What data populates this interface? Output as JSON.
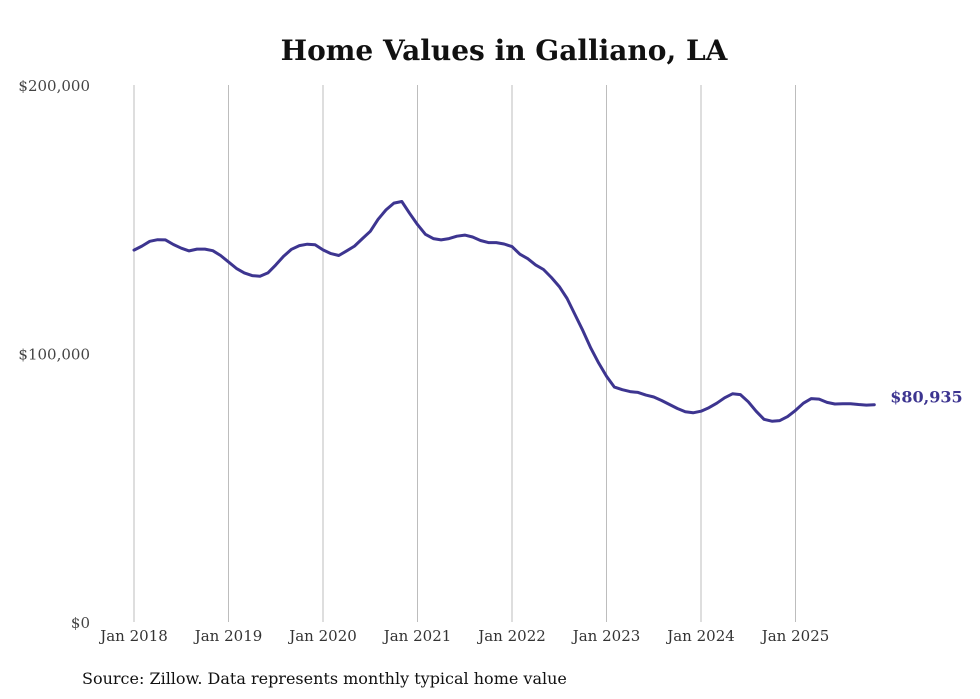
{
  "chart_data": {
    "type": "line",
    "title": "Home Values in Galliano, LA",
    "source": "Source: Zillow. Data represents monthly typical home value",
    "xlabel": "",
    "ylabel": "",
    "ylim": [
      0,
      200000
    ],
    "yticks": [
      {
        "value": 0,
        "label": "$0"
      },
      {
        "value": 100000,
        "label": "$100,000"
      },
      {
        "value": 200000,
        "label": "$200,000"
      }
    ],
    "xticks": [
      {
        "month_index": 0,
        "label": "Jan 2018"
      },
      {
        "month_index": 12,
        "label": "Jan 2019"
      },
      {
        "month_index": 24,
        "label": "Jan 2020"
      },
      {
        "month_index": 36,
        "label": "Jan 2021"
      },
      {
        "month_index": 48,
        "label": "Jan 2022"
      },
      {
        "month_index": 60,
        "label": "Jan 2023"
      },
      {
        "month_index": 72,
        "label": "Jan 2024"
      },
      {
        "month_index": 84,
        "label": "Jan 2025"
      }
    ],
    "x_start": "Jan 2018",
    "x_step": "1 month",
    "grid": "vertical",
    "series": [
      {
        "name": "Typical home value",
        "color": "#3d3590",
        "end_label": "$80,935",
        "values": [
          138500,
          140000,
          141800,
          142400,
          142300,
          140600,
          139200,
          138200,
          138900,
          138900,
          138300,
          136500,
          134100,
          131700,
          130000,
          129000,
          128800,
          130000,
          133000,
          136200,
          138800,
          140200,
          140700,
          140500,
          138600,
          137200,
          136500,
          138200,
          140000,
          142800,
          145500,
          150000,
          153500,
          156000,
          156600,
          152200,
          148000,
          144400,
          142800,
          142300,
          142800,
          143700,
          144100,
          143400,
          142100,
          141300,
          141300,
          140800,
          139800,
          137000,
          135300,
          133000,
          131300,
          128300,
          124900,
          120500,
          114500,
          108500,
          102000,
          96500,
          91500,
          87500,
          86500,
          85800,
          85500,
          84500,
          83800,
          82500,
          81000,
          79500,
          78300,
          77900,
          78500,
          79800,
          81500,
          83500,
          85000,
          84700,
          82000,
          78500,
          75500,
          74800,
          75000,
          76500,
          78800,
          81500,
          83200,
          83000,
          81800,
          81200,
          81300,
          81300,
          81000,
          80800,
          80935
        ]
      }
    ]
  }
}
